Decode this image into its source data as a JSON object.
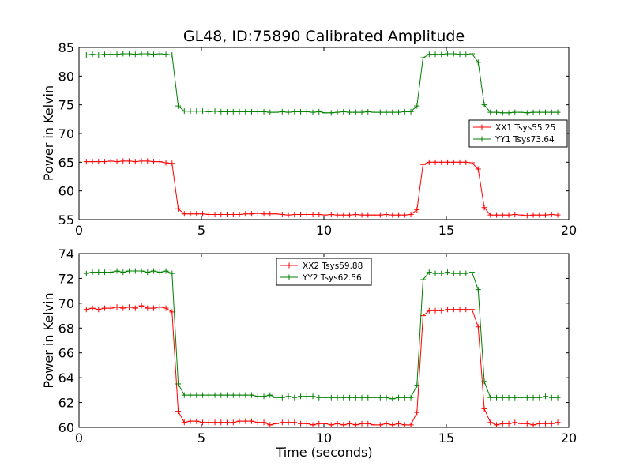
{
  "chart_data": [
    {
      "type": "line",
      "title": "GL48, ID:75890 Calibrated Amplitude",
      "xlabel": "",
      "ylabel": "Power in Kelvin",
      "xlim": [
        0,
        20
      ],
      "ylim": [
        55,
        85
      ],
      "xticks": [
        0,
        5,
        10,
        15,
        20
      ],
      "yticks": [
        55,
        60,
        65,
        70,
        75,
        80,
        85
      ],
      "legend_position": "right",
      "x": [
        0.3,
        0.55,
        0.8,
        1.05,
        1.3,
        1.55,
        1.8,
        2.05,
        2.3,
        2.55,
        2.8,
        3.05,
        3.3,
        3.55,
        3.8,
        4.05,
        4.3,
        4.55,
        4.8,
        5.05,
        5.3,
        5.55,
        5.8,
        6.05,
        6.3,
        6.55,
        6.8,
        7.05,
        7.3,
        7.55,
        7.8,
        8.05,
        8.3,
        8.55,
        8.8,
        9.05,
        9.3,
        9.55,
        9.8,
        10.05,
        10.3,
        10.55,
        10.8,
        11.05,
        11.3,
        11.55,
        11.8,
        12.05,
        12.3,
        12.55,
        12.8,
        13.05,
        13.3,
        13.55,
        13.8,
        14.05,
        14.3,
        14.55,
        14.8,
        15.05,
        15.3,
        15.55,
        15.8,
        16.05,
        16.3,
        16.55,
        16.8,
        17.05,
        17.3,
        17.55,
        17.8,
        18.05,
        18.3,
        18.55,
        18.8,
        19.05,
        19.3,
        19.55
      ],
      "series": [
        {
          "name": "XX1 Tsys55.25",
          "color": "#ff0000",
          "values": [
            65.1,
            65.1,
            65.1,
            65.1,
            65.2,
            65.1,
            65.2,
            65.2,
            65.1,
            65.2,
            65.2,
            65.1,
            65.1,
            64.9,
            64.8,
            56.9,
            56.0,
            56.0,
            56.0,
            56.0,
            55.9,
            55.9,
            55.9,
            55.9,
            55.9,
            55.9,
            56.0,
            56.0,
            56.1,
            56.0,
            56.0,
            56.0,
            55.9,
            55.8,
            55.9,
            55.9,
            55.9,
            55.9,
            55.9,
            55.8,
            55.9,
            55.8,
            55.8,
            55.8,
            55.9,
            55.8,
            55.8,
            55.8,
            55.8,
            55.9,
            55.8,
            55.8,
            55.8,
            55.9,
            56.7,
            64.6,
            65.0,
            65.0,
            65.0,
            65.0,
            65.0,
            65.0,
            65.0,
            64.9,
            63.8,
            57.1,
            55.8,
            55.8,
            55.8,
            55.8,
            55.9,
            55.8,
            55.7,
            55.8,
            55.8,
            55.8,
            55.9,
            55.8
          ]
        },
        {
          "name": "YY1 Tsys73.64",
          "color": "#008000",
          "values": [
            83.7,
            83.8,
            83.7,
            83.8,
            83.8,
            83.8,
            83.9,
            83.9,
            83.8,
            83.9,
            83.9,
            83.8,
            83.9,
            83.8,
            83.7,
            74.8,
            73.9,
            73.9,
            73.9,
            73.9,
            73.8,
            73.9,
            73.8,
            73.8,
            73.8,
            73.8,
            73.8,
            73.8,
            73.8,
            73.8,
            73.7,
            73.7,
            73.8,
            73.7,
            73.8,
            73.8,
            73.8,
            73.7,
            73.8,
            73.6,
            73.6,
            73.7,
            73.8,
            73.7,
            73.7,
            73.7,
            73.8,
            73.7,
            73.7,
            73.7,
            73.7,
            73.7,
            73.8,
            73.8,
            74.8,
            83.2,
            83.8,
            83.8,
            83.8,
            83.9,
            83.9,
            83.8,
            83.8,
            83.9,
            82.4,
            75.0,
            73.7,
            73.7,
            73.6,
            73.6,
            73.7,
            73.7,
            73.6,
            73.7,
            73.7,
            73.7,
            73.7,
            73.7
          ]
        }
      ]
    },
    {
      "type": "line",
      "title": "",
      "xlabel": "Time (seconds)",
      "ylabel": "Power in Kelvin",
      "xlim": [
        0,
        20
      ],
      "ylim": [
        60,
        74
      ],
      "xticks": [
        0,
        5,
        10,
        15,
        20
      ],
      "yticks": [
        60,
        62,
        64,
        66,
        68,
        70,
        72,
        74
      ],
      "legend_position": "top-center",
      "x": [
        0.3,
        0.55,
        0.8,
        1.05,
        1.3,
        1.55,
        1.8,
        2.05,
        2.3,
        2.55,
        2.8,
        3.05,
        3.3,
        3.55,
        3.8,
        4.05,
        4.3,
        4.55,
        4.8,
        5.05,
        5.3,
        5.55,
        5.8,
        6.05,
        6.3,
        6.55,
        6.8,
        7.05,
        7.3,
        7.55,
        7.8,
        8.05,
        8.3,
        8.55,
        8.8,
        9.05,
        9.3,
        9.55,
        9.8,
        10.05,
        10.3,
        10.55,
        10.8,
        11.05,
        11.3,
        11.55,
        11.8,
        12.05,
        12.3,
        12.55,
        12.8,
        13.05,
        13.3,
        13.55,
        13.8,
        14.05,
        14.3,
        14.55,
        14.8,
        15.05,
        15.3,
        15.55,
        15.8,
        16.05,
        16.3,
        16.55,
        16.8,
        17.05,
        17.3,
        17.55,
        17.8,
        18.05,
        18.3,
        18.55,
        18.8,
        19.05,
        19.3,
        19.55
      ],
      "series": [
        {
          "name": "XX2 Tsys59.88",
          "color": "#ff0000",
          "values": [
            69.5,
            69.6,
            69.5,
            69.6,
            69.6,
            69.7,
            69.6,
            69.7,
            69.6,
            69.8,
            69.6,
            69.6,
            69.7,
            69.6,
            69.3,
            61.3,
            60.4,
            60.5,
            60.5,
            60.4,
            60.4,
            60.4,
            60.4,
            60.4,
            60.4,
            60.5,
            60.5,
            60.5,
            60.4,
            60.4,
            60.2,
            60.3,
            60.4,
            60.4,
            60.4,
            60.3,
            60.3,
            60.2,
            60.3,
            60.3,
            60.2,
            60.3,
            60.2,
            60.3,
            60.2,
            60.3,
            60.3,
            60.2,
            60.2,
            60.3,
            60.2,
            60.3,
            60.2,
            60.2,
            61.2,
            69.0,
            69.4,
            69.4,
            69.4,
            69.5,
            69.5,
            69.5,
            69.5,
            69.5,
            68.1,
            61.5,
            60.4,
            60.2,
            60.3,
            60.3,
            60.4,
            60.3,
            60.3,
            60.2,
            60.3,
            60.3,
            60.3,
            60.4
          ]
        },
        {
          "name": "YY2 Tsys62.56",
          "color": "#008000",
          "values": [
            72.4,
            72.5,
            72.5,
            72.5,
            72.5,
            72.6,
            72.5,
            72.6,
            72.6,
            72.6,
            72.5,
            72.6,
            72.5,
            72.6,
            72.4,
            63.5,
            62.6,
            62.6,
            62.6,
            62.6,
            62.6,
            62.6,
            62.6,
            62.6,
            62.6,
            62.6,
            62.6,
            62.6,
            62.5,
            62.5,
            62.6,
            62.4,
            62.4,
            62.5,
            62.4,
            62.5,
            62.5,
            62.5,
            62.4,
            62.4,
            62.4,
            62.4,
            62.4,
            62.4,
            62.4,
            62.4,
            62.4,
            62.4,
            62.4,
            62.4,
            62.3,
            62.4,
            62.4,
            62.4,
            63.4,
            71.9,
            72.5,
            72.4,
            72.4,
            72.5,
            72.4,
            72.4,
            72.4,
            72.5,
            71.1,
            63.7,
            62.4,
            62.4,
            62.4,
            62.4,
            62.4,
            62.4,
            62.4,
            62.4,
            62.4,
            62.5,
            62.4,
            62.4
          ]
        }
      ]
    }
  ]
}
